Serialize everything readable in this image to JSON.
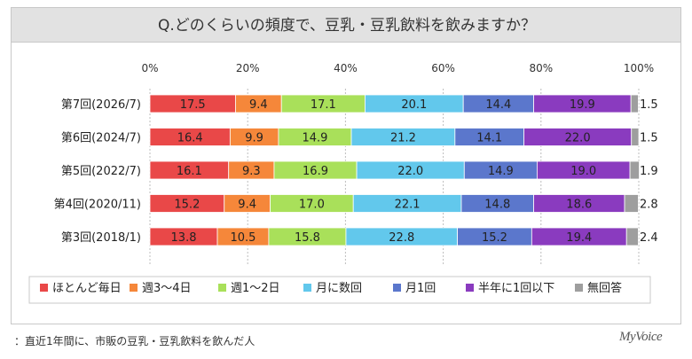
{
  "header": {
    "title": "Q.どのくらいの頻度で、豆乳・豆乳飲料を飲みますか？"
  },
  "footnote": "：直近1年間に、市販の豆乳・豆乳飲料を飲んだ人",
  "logo": "MyVoice",
  "chart_data": {
    "type": "bar",
    "orientation": "horizontal",
    "stacked": true,
    "title": "Q.どのくらいの頻度で、豆乳・豆乳飲料を飲みますか？",
    "xlim": [
      0,
      100
    ],
    "x_ticks": [
      "0%",
      "20%",
      "40%",
      "60%",
      "80%",
      "100%"
    ],
    "x_tick_values": [
      0,
      20,
      40,
      60,
      80,
      100
    ],
    "grid": true,
    "legend_position": "bottom",
    "categories": [
      "第7回(2026/7)",
      "第6回(2024/7)",
      "第5回(2022/7)",
      "第4回(2020/11)",
      "第3回(2018/1)"
    ],
    "series": [
      {
        "name": "ほとんど毎日",
        "color": "#e94848",
        "values": [
          17.5,
          16.4,
          16.1,
          15.2,
          13.8
        ]
      },
      {
        "name": "週3～4日",
        "color": "#f5873a",
        "values": [
          9.4,
          9.9,
          9.3,
          9.4,
          10.5
        ]
      },
      {
        "name": "週1～2日",
        "color": "#a9e05a",
        "values": [
          17.1,
          14.9,
          16.9,
          17.0,
          15.8
        ]
      },
      {
        "name": "月に数回",
        "color": "#62c8ec",
        "values": [
          20.1,
          21.2,
          22.0,
          22.1,
          22.8
        ]
      },
      {
        "name": "月1回",
        "color": "#5b77cc",
        "values": [
          14.4,
          14.1,
          14.9,
          14.8,
          15.2
        ]
      },
      {
        "name": "半年に1回以下",
        "color": "#8a3bbf",
        "values": [
          19.9,
          22.0,
          19.0,
          18.6,
          19.4
        ]
      },
      {
        "name": "無回答",
        "color": "#9e9e9e",
        "values": [
          1.5,
          1.5,
          1.9,
          2.8,
          2.4
        ]
      }
    ]
  }
}
